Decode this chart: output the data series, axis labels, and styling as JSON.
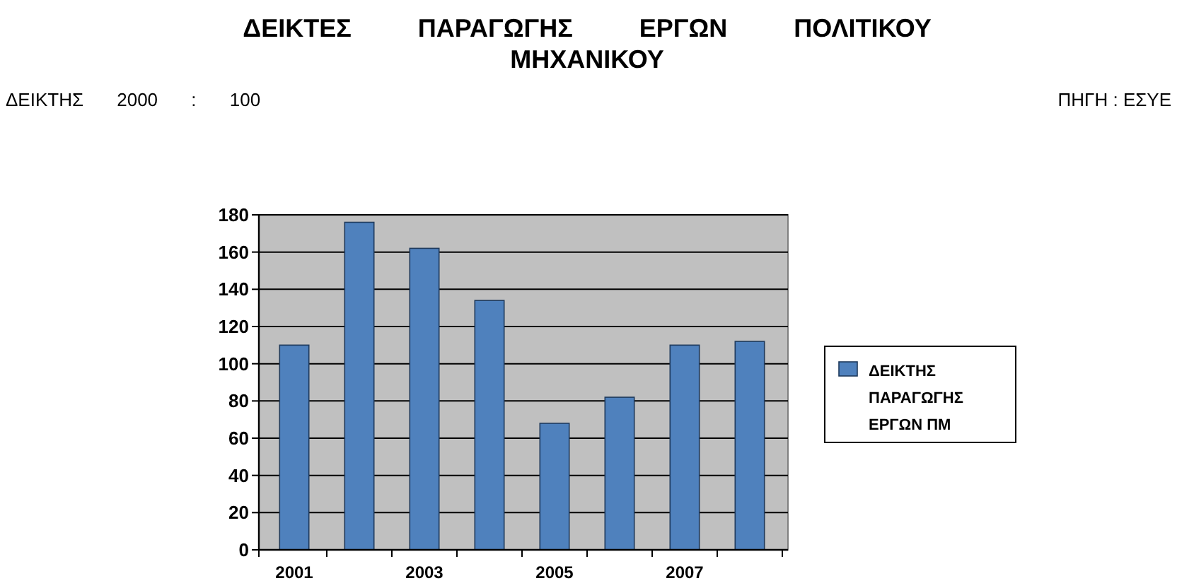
{
  "chart_data": {
    "type": "bar",
    "title": "ΔΕΙΚΤΕΣ ΠΑΡΑΓΩΓΗΣ ΕΡΓΩΝ ΠΟΛΙΤΙΚΟΥ ΜΗΧΑΝΙΚΟΥ",
    "subtitle": "ΔΕΙΚΤΗΣ 2000 : 100",
    "annotations": [
      "ΠΗΓΗ : ΕΣΥΕ"
    ],
    "categories": [
      "2001",
      null,
      "2003",
      null,
      "2005",
      null,
      "2007",
      null
    ],
    "series": [
      {
        "name": "ΔΕΙΚΤΗΣ ΠΑΡΑΓΩΓΗΣ ΕΡΓΩΝ ΠΜ",
        "color": "#4f81bd",
        "values": [
          110,
          176,
          162,
          134,
          68,
          82,
          110,
          112
        ]
      }
    ],
    "ylim": [
      0,
      180
    ],
    "yticks": [
      0,
      20,
      40,
      60,
      80,
      100,
      120,
      140,
      160,
      180
    ],
    "grid": "y",
    "legend": "right"
  }
}
